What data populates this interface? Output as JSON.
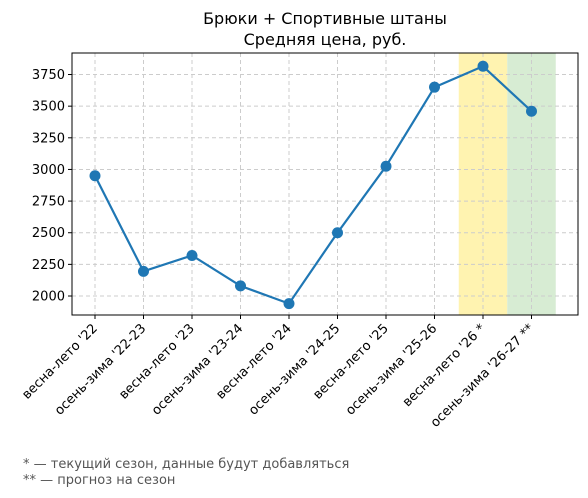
{
  "chart_data": {
    "type": "line",
    "title": "Брюки + Спортивные штаны",
    "subtitle": "Средняя цена, руб.",
    "xlabel": "",
    "ylabel": "",
    "categories": [
      "весна-лето '22",
      "осень-зима '22-23",
      "весна-лето '23",
      "осень-зима '23-24",
      "весна-лето '24",
      "осень-зима '24-25",
      "весна-лето '25",
      "осень-зима '25-26",
      "весна-лето '26 *",
      "осень-зима '26-27 **"
    ],
    "series": [
      {
        "values": [
          2950,
          2195,
          2320,
          2080,
          1940,
          2500,
          3025,
          3650,
          3815,
          3460
        ]
      }
    ],
    "ylim": [
      1850,
      3920
    ],
    "yticks": [
      2000,
      2250,
      2500,
      2750,
      3000,
      3250,
      3500,
      3750
    ],
    "grid": true,
    "line_color": "#1f77b4",
    "highlights": [
      {
        "category_index": 8,
        "color": "#fff3b0"
      },
      {
        "category_index": 9,
        "color": "#d7ecd3"
      }
    ]
  },
  "footnotes": [
    "* — текущий сезон, данные будут добавляться",
    "** — прогноз на сезон"
  ]
}
